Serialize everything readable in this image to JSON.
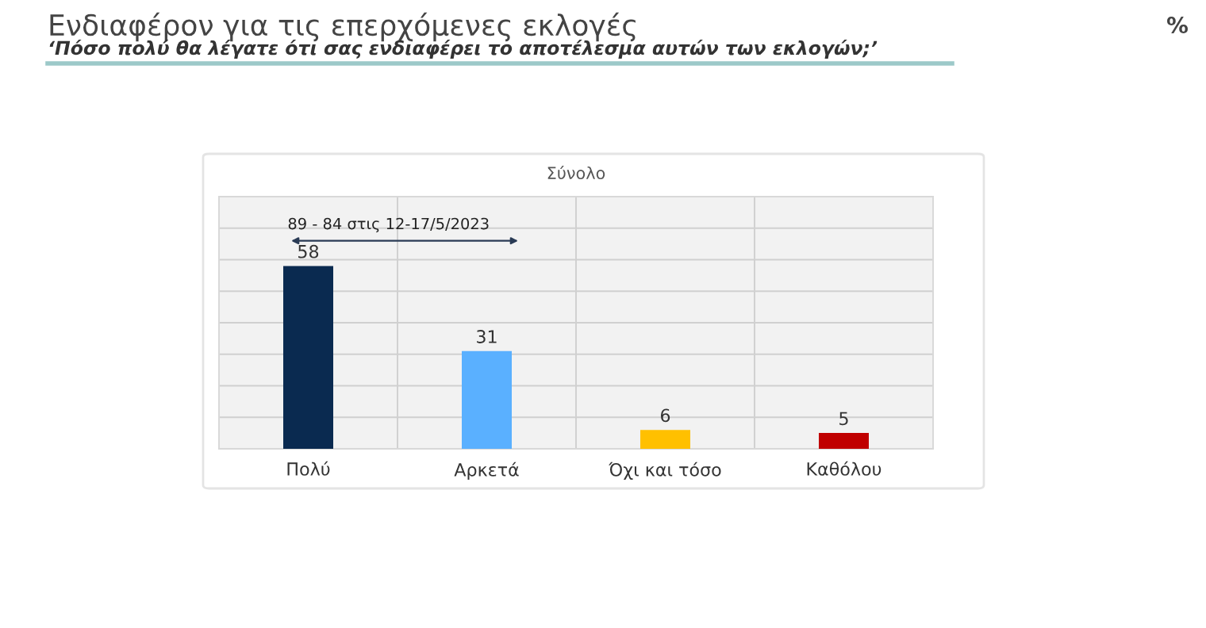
{
  "chart_data": {
    "type": "bar",
    "title": "Ενδιαφέρον για τις επερχόμενες εκλογές",
    "subtitle": "‘Πόσο πολύ θα λέγατε ότι σας ενδιαφέρει το αποτέλεσμα αυτών των εκλογών;’",
    "annotations": [
      "89 - 84 στις 12-17/5/2023",
      "%",
      "Σύνολο"
    ],
    "categories": [
      "Πολύ",
      "Αρκετά",
      "Όχι και τόσο",
      "Καθόλου"
    ],
    "values": [
      58,
      31,
      6,
      5
    ],
    "colors": [
      "#0a2a50",
      "#5ab0ff",
      "#ffc000",
      "#c00000"
    ],
    "data_labels": true,
    "ylim": [
      0,
      80
    ],
    "yticks": [
      {
        "value": 0,
        "label": null
      },
      {
        "value": 10,
        "label": null
      },
      {
        "value": 20,
        "label": null
      },
      {
        "value": 30,
        "label": null
      },
      {
        "value": 40,
        "label": null
      },
      {
        "value": 50,
        "label": null
      },
      {
        "value": 60,
        "label": null
      },
      {
        "value": 70,
        "label": null
      },
      {
        "value": 80,
        "label": null
      }
    ],
    "grid": true,
    "legend": false
  }
}
